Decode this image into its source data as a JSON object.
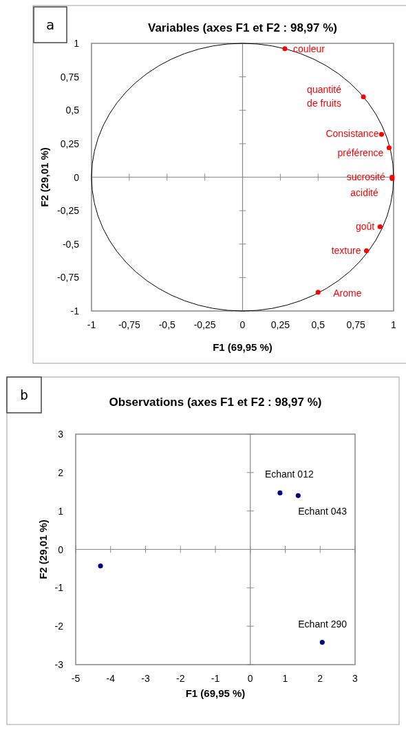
{
  "chart_data": [
    {
      "type": "scatter",
      "title": "Variables (axes F1 et F2 : 98,97 %)",
      "xlabel": "F1 (69,95 %)",
      "ylabel": "F2 (29,01 %)",
      "x": [
        0.28,
        0.8,
        0.92,
        0.97,
        0.99,
        0.99,
        0.91,
        0.82,
        0.5
      ],
      "values": [
        0.96,
        0.6,
        0.32,
        0.22,
        0.0,
        -0.01,
        -0.37,
        -0.55,
        -0.86
      ],
      "color": "#ff0000",
      "marker": "circle",
      "xlim": [
        -1,
        1
      ],
      "xticks": [
        {
          "value": -1,
          "label": "-1"
        },
        {
          "value": -0.75,
          "label": "-0,75"
        },
        {
          "value": -0.5,
          "label": "-0,5"
        },
        {
          "value": -0.25,
          "label": "-0,25"
        },
        {
          "value": 0,
          "label": "0"
        },
        {
          "value": 0.25,
          "label": "0,25"
        },
        {
          "value": 0.5,
          "label": "0,5"
        },
        {
          "value": 0.75,
          "label": "0,75"
        },
        {
          "value": 1,
          "label": "1"
        }
      ],
      "ylim": [
        -1,
        1
      ],
      "yticks": [
        {
          "value": -1,
          "label": "-1"
        },
        {
          "value": -0.75,
          "label": "-0,75"
        },
        {
          "value": -0.5,
          "label": "-0,5"
        },
        {
          "value": -0.25,
          "label": "-0,25"
        },
        {
          "value": 0,
          "label": "0"
        },
        {
          "value": 0.25,
          "label": "0,25"
        },
        {
          "value": 0.5,
          "label": "0,5"
        },
        {
          "value": 0.75,
          "label": "0,75"
        },
        {
          "value": 1,
          "label": "1"
        }
      ],
      "annotations": [
        "a",
        {
          "text": "couleur",
          "x": 0.28,
          "y": 0.96
        },
        {
          "text": "quantité de fruits",
          "x": 0.8,
          "y": 0.6
        },
        {
          "text": "Consistance",
          "x": 0.92,
          "y": 0.32
        },
        {
          "text": "préférence",
          "x": 0.97,
          "y": 0.22
        },
        {
          "text": "sucrosité",
          "x": 0.99,
          "y": 0.0
        },
        {
          "text": "acidité",
          "x": 0.99,
          "y": -0.01
        },
        {
          "text": "goût",
          "x": 0.91,
          "y": -0.37
        },
        {
          "text": "texture",
          "x": 0.82,
          "y": -0.55
        },
        {
          "text": "Arome",
          "x": 0.5,
          "y": -0.86
        }
      ]
    },
    {
      "type": "scatter",
      "title": "Observations (axes F1 et F2 : 98,97 %)",
      "xlabel": "F1 (69,95 %)",
      "ylabel": "F2 (29,01 %)",
      "x": [
        -4.29,
        0.85,
        1.37,
        2.06
      ],
      "values": [
        -0.43,
        1.47,
        1.4,
        -2.42
      ],
      "color": "#000080",
      "marker": "circle",
      "xlim": [
        -5,
        3
      ],
      "xticks": [
        -5,
        -4,
        -3,
        -2,
        -1,
        0,
        1,
        2,
        3
      ],
      "ylim": [
        -3,
        3
      ],
      "yticks": [
        -3,
        -2,
        -1,
        0,
        1,
        2,
        3
      ],
      "annotations": [
        "b",
        {
          "text": "Echant 012",
          "x": 0.85,
          "y": 1.47
        },
        {
          "text": "Echant 043",
          "x": 1.37,
          "y": 1.4
        },
        {
          "text": "Echant 290",
          "x": 2.06,
          "y": -2.42
        }
      ]
    }
  ]
}
